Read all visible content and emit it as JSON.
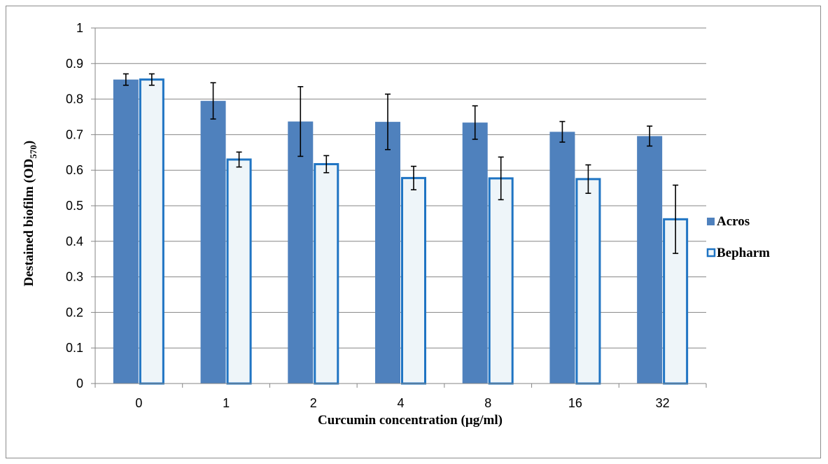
{
  "chart_data": {
    "type": "bar",
    "title": "",
    "xlabel": "Curcumin concentration (µg/ml)",
    "ylabel": {
      "main": "Destained biofilm (OD",
      "sub": "570",
      "close": ")"
    },
    "categories": [
      "0",
      "1",
      "2",
      "4",
      "8",
      "16",
      "32"
    ],
    "ylim": [
      0,
      1
    ],
    "yticks": [
      "0",
      "0.1",
      "0.2",
      "0.3",
      "0.4",
      "0.5",
      "0.6",
      "0.7",
      "0.8",
      "0.9",
      "1"
    ],
    "grid": true,
    "legend_position": "right",
    "series": [
      {
        "name": "Acros",
        "values": [
          0.855,
          0.795,
          0.737,
          0.736,
          0.734,
          0.708,
          0.696
        ],
        "errors": [
          0.016,
          0.051,
          0.098,
          0.078,
          0.047,
          0.029,
          0.028
        ],
        "fill": "#4f81bd",
        "stroke": "#4f81bd"
      },
      {
        "name": "Bepharm",
        "values": [
          0.855,
          0.63,
          0.617,
          0.578,
          0.577,
          0.575,
          0.462
        ],
        "errors": [
          0.016,
          0.021,
          0.024,
          0.033,
          0.06,
          0.04,
          0.096
        ],
        "fill": "#eef5f9",
        "stroke": "#1f74c3"
      }
    ],
    "colors": {
      "gridline": "#868686",
      "axis": "#868686",
      "errorbar": "#000000"
    }
  }
}
